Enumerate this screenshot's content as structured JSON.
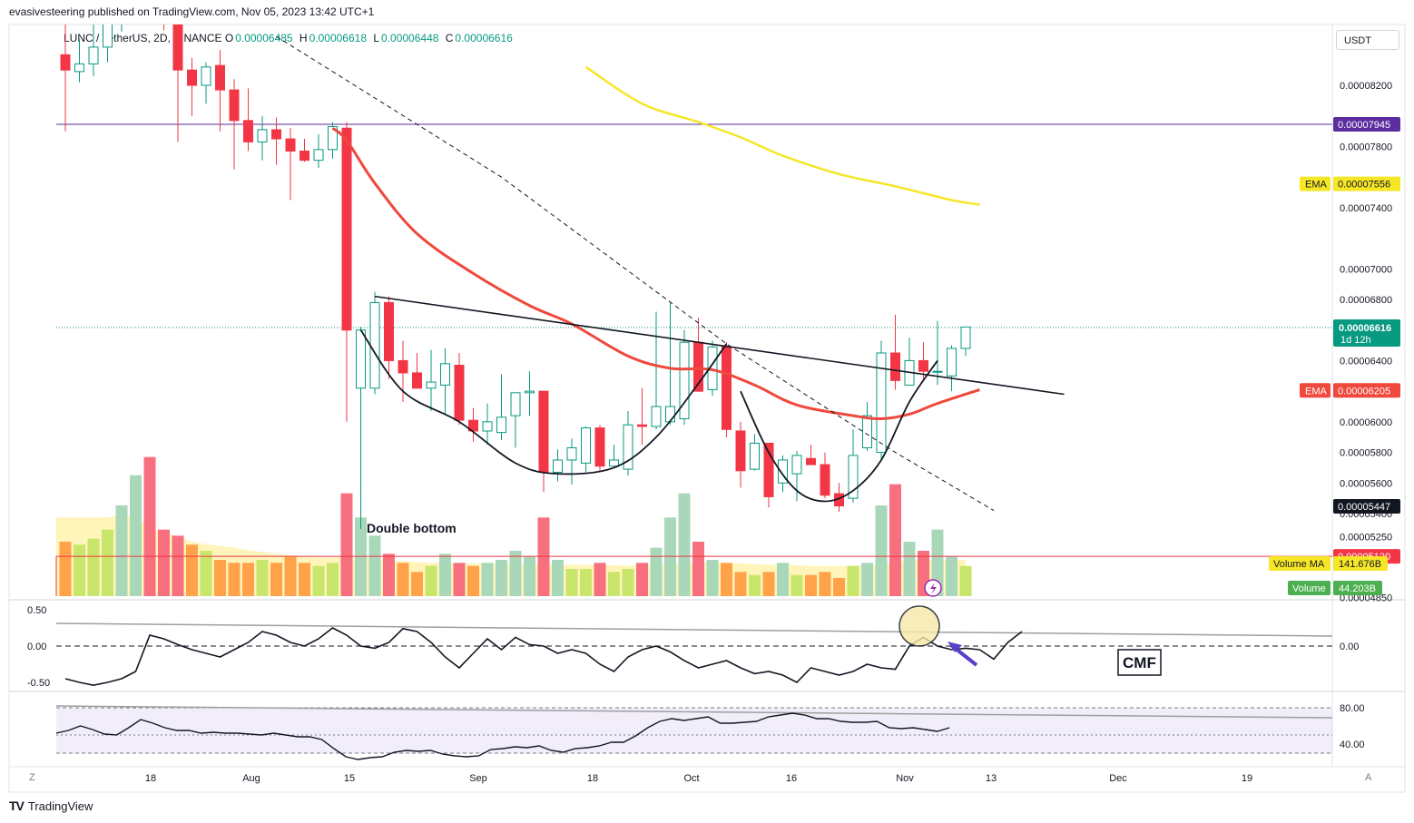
{
  "header": {
    "published": "evasivesteering published on TradingView.com, Nov 05, 2023 13:42 UTC+1",
    "symbol": "LUNC / TetherUS, 2D, BINANCE",
    "ohlc": [
      {
        "k": "O",
        "v": "0.00006485"
      },
      {
        "k": "H",
        "v": "0.00006618"
      },
      {
        "k": "L",
        "v": "0.00006448"
      },
      {
        "k": "C",
        "v": "0.00006616"
      }
    ]
  },
  "footer": {
    "brand": "TradingView",
    "logo": "tradingview-logo-icon"
  },
  "corner": {
    "left": "Z",
    "right": "A"
  },
  "price_axis": {
    "currency": "USDT"
  },
  "colors": {
    "up": "#089981",
    "down": "#f23645",
    "ema_fast": "#f0483c",
    "ema_slow": "#f5e626",
    "hline": "#5b2d9e",
    "support": "#f23645",
    "vol_ma": "#fff1a8"
  },
  "chart_data": [
    {
      "type": "candlestick",
      "title": "LUNC / TetherUS, 2D, BINANCE",
      "ylim": [
        4.86e-05,
        8.58e-05
      ],
      "x_ticks": [
        "18",
        "Aug",
        "15",
        "Sep",
        "18",
        "Oct",
        "16",
        "Nov",
        "13",
        "Dec",
        "19"
      ],
      "y_ticks": [
        "0.00008200",
        "0.00007800",
        "0.00007400",
        "0.00007000",
        "0.00006800",
        "0.00006400",
        "0.00006000",
        "0.00005800",
        "0.00005600",
        "0.00005400",
        "0.00005250",
        "0.00004850"
      ],
      "candles": [
        {
          "o": 8.4e-05,
          "h": 8.7e-05,
          "l": 7.9e-05,
          "c": 8.3e-05
        },
        {
          "o": 8.29e-05,
          "h": 8.5e-05,
          "l": 8.22e-05,
          "c": 8.34e-05
        },
        {
          "o": 8.34e-05,
          "h": 8.68e-05,
          "l": 8.26e-05,
          "c": 8.45e-05
        },
        {
          "o": 8.45e-05,
          "h": 8.78e-05,
          "l": 8.35e-05,
          "c": 8.72e-05
        },
        {
          "o": 8.72e-05,
          "h": 8.95e-05,
          "l": 8.55e-05,
          "c": 8.8e-05
        },
        {
          "o": 8.8e-05,
          "h": 9e-05,
          "l": 8.62e-05,
          "c": 8.85e-05
        },
        {
          "o": 8.85e-05,
          "h": 9e-05,
          "l": 8.68e-05,
          "c": 8.72e-05
        },
        {
          "o": 8.72e-05,
          "h": 8.92e-05,
          "l": 8.56e-05,
          "c": 8.68e-05
        },
        {
          "o": 8.68e-05,
          "h": 8.75e-05,
          "l": 7.83e-05,
          "c": 8.3e-05
        },
        {
          "o": 8.3e-05,
          "h": 8.38e-05,
          "l": 8e-05,
          "c": 8.2e-05
        },
        {
          "o": 8.2e-05,
          "h": 8.35e-05,
          "l": 8.08e-05,
          "c": 8.32e-05
        },
        {
          "o": 8.33e-05,
          "h": 8.43e-05,
          "l": 7.9e-05,
          "c": 8.17e-05
        },
        {
          "o": 8.17e-05,
          "h": 8.24e-05,
          "l": 7.65e-05,
          "c": 7.97e-05
        },
        {
          "o": 7.97e-05,
          "h": 8.18e-05,
          "l": 7.77e-05,
          "c": 7.83e-05
        },
        {
          "o": 7.83e-05,
          "h": 8e-05,
          "l": 7.71e-05,
          "c": 7.91e-05
        },
        {
          "o": 7.91e-05,
          "h": 7.99e-05,
          "l": 7.68e-05,
          "c": 7.85e-05
        },
        {
          "o": 7.85e-05,
          "h": 7.92e-05,
          "l": 7.45e-05,
          "c": 7.77e-05
        },
        {
          "o": 7.77e-05,
          "h": 7.85e-05,
          "l": 7.7e-05,
          "c": 7.71e-05
        },
        {
          "o": 7.71e-05,
          "h": 7.88e-05,
          "l": 7.66e-05,
          "c": 7.78e-05
        },
        {
          "o": 7.78e-05,
          "h": 7.96e-05,
          "l": 7.72e-05,
          "c": 7.93e-05
        },
        {
          "o": 7.92e-05,
          "h": 7.96e-05,
          "l": 6e-05,
          "c": 6.6e-05
        },
        {
          "o": 6.22e-05,
          "h": 6.62e-05,
          "l": 5.3e-05,
          "c": 6.6e-05
        },
        {
          "o": 6.22e-05,
          "h": 6.85e-05,
          "l": 6.18e-05,
          "c": 6.78e-05
        },
        {
          "o": 6.78e-05,
          "h": 6.82e-05,
          "l": 6.28e-05,
          "c": 6.4e-05
        },
        {
          "o": 6.4e-05,
          "h": 6.53e-05,
          "l": 6.13e-05,
          "c": 6.32e-05
        },
        {
          "o": 6.32e-05,
          "h": 6.45e-05,
          "l": 6.25e-05,
          "c": 6.22e-05
        },
        {
          "o": 6.22e-05,
          "h": 6.47e-05,
          "l": 6.07e-05,
          "c": 6.26e-05
        },
        {
          "o": 6.24e-05,
          "h": 6.48e-05,
          "l": 6.05e-05,
          "c": 6.38e-05
        },
        {
          "o": 6.37e-05,
          "h": 6.45e-05,
          "l": 5.98e-05,
          "c": 6.01e-05
        },
        {
          "o": 6.01e-05,
          "h": 6.09e-05,
          "l": 5.87e-05,
          "c": 5.94e-05
        },
        {
          "o": 5.94e-05,
          "h": 6.12e-05,
          "l": 5.85e-05,
          "c": 6e-05
        },
        {
          "o": 5.93e-05,
          "h": 6.31e-05,
          "l": 5.88e-05,
          "c": 6.03e-05
        },
        {
          "o": 6.04e-05,
          "h": 6.17e-05,
          "l": 5.83e-05,
          "c": 6.19e-05
        },
        {
          "o": 6.19e-05,
          "h": 6.33e-05,
          "l": 6.04e-05,
          "c": 6.2e-05
        },
        {
          "o": 6.2e-05,
          "h": 6.2e-05,
          "l": 5.54e-05,
          "c": 5.67e-05
        },
        {
          "o": 5.67e-05,
          "h": 5.82e-05,
          "l": 5.61e-05,
          "c": 5.75e-05
        },
        {
          "o": 5.75e-05,
          "h": 5.89e-05,
          "l": 5.59e-05,
          "c": 5.83e-05
        },
        {
          "o": 5.73e-05,
          "h": 5.97e-05,
          "l": 5.67e-05,
          "c": 5.96e-05
        },
        {
          "o": 5.96e-05,
          "h": 5.98e-05,
          "l": 5.68e-05,
          "c": 5.71e-05
        },
        {
          "o": 5.71e-05,
          "h": 5.85e-05,
          "l": 5.7e-05,
          "c": 5.75e-05
        },
        {
          "o": 5.69e-05,
          "h": 6.07e-05,
          "l": 5.65e-05,
          "c": 5.98e-05
        },
        {
          "o": 5.98e-05,
          "h": 6.22e-05,
          "l": 5.85e-05,
          "c": 5.97e-05
        },
        {
          "o": 5.97e-05,
          "h": 6.72e-05,
          "l": 5.95e-05,
          "c": 6.1e-05
        },
        {
          "o": 6e-05,
          "h": 6.78e-05,
          "l": 5.98e-05,
          "c": 6.1e-05
        },
        {
          "o": 6.02e-05,
          "h": 6.6e-05,
          "l": 5.98e-05,
          "c": 6.52e-05
        },
        {
          "o": 6.52e-05,
          "h": 6.68e-05,
          "l": 6.2e-05,
          "c": 6.2e-05
        },
        {
          "o": 6.21e-05,
          "h": 6.53e-05,
          "l": 6.17e-05,
          "c": 6.49e-05
        },
        {
          "o": 6.49e-05,
          "h": 6.52e-05,
          "l": 5.9e-05,
          "c": 5.95e-05
        },
        {
          "o": 5.94e-05,
          "h": 6e-05,
          "l": 5.57e-05,
          "c": 5.68e-05
        },
        {
          "o": 5.69e-05,
          "h": 5.92e-05,
          "l": 5.68e-05,
          "c": 5.86e-05
        },
        {
          "o": 5.86e-05,
          "h": 5.86e-05,
          "l": 5.44e-05,
          "c": 5.51e-05
        },
        {
          "o": 5.6e-05,
          "h": 5.78e-05,
          "l": 5.54e-05,
          "c": 5.75e-05
        },
        {
          "o": 5.66e-05,
          "h": 5.81e-05,
          "l": 5.48e-05,
          "c": 5.78e-05
        },
        {
          "o": 5.76e-05,
          "h": 5.85e-05,
          "l": 5.72e-05,
          "c": 5.72e-05
        },
        {
          "o": 5.72e-05,
          "h": 5.8e-05,
          "l": 5.5e-05,
          "c": 5.52e-05
        },
        {
          "o": 5.53e-05,
          "h": 5.6e-05,
          "l": 5.41e-05,
          "c": 5.45e-05
        },
        {
          "o": 5.5e-05,
          "h": 5.95e-05,
          "l": 5.47e-05,
          "c": 5.78e-05
        },
        {
          "o": 5.83e-05,
          "h": 6.13e-05,
          "l": 5.81e-05,
          "c": 6.04e-05
        },
        {
          "o": 5.8e-05,
          "h": 6.53e-05,
          "l": 5.76e-05,
          "c": 6.45e-05
        },
        {
          "o": 6.45e-05,
          "h": 6.7e-05,
          "l": 6.21e-05,
          "c": 6.27e-05
        },
        {
          "o": 6.24e-05,
          "h": 6.55e-05,
          "l": 6.26e-05,
          "c": 6.4e-05
        },
        {
          "o": 6.4e-05,
          "h": 6.52e-05,
          "l": 6.27e-05,
          "c": 6.33e-05
        },
        {
          "o": 6.33e-05,
          "h": 6.66e-05,
          "l": 6.24e-05,
          "c": 6.33e-05
        },
        {
          "o": 6.3e-05,
          "h": 6.5e-05,
          "l": 6.2e-05,
          "c": 6.48e-05
        },
        {
          "o": 6.48e-05,
          "h": 6.62e-05,
          "l": 6.43e-05,
          "c": 6.62e-05
        }
      ],
      "ema_fast": [
        [
          19,
          7.92e-05
        ],
        [
          20,
          7.84e-05
        ],
        [
          22,
          7.56e-05
        ],
        [
          25,
          7.23e-05
        ],
        [
          29,
          6.97e-05
        ],
        [
          33,
          6.76e-05
        ],
        [
          36,
          6.64e-05
        ],
        [
          40,
          6.43e-05
        ],
        [
          43,
          6.35e-05
        ],
        [
          46,
          6.34e-05
        ],
        [
          49,
          6.24e-05
        ],
        [
          52,
          6.11e-05
        ],
        [
          56,
          6.04e-05
        ],
        [
          58,
          6.02e-05
        ],
        [
          60,
          6.05e-05
        ],
        [
          62,
          6.12e-05
        ],
        [
          65,
          6.21e-05
        ]
      ],
      "ema_slow": [
        [
          37,
          8.32e-05
        ],
        [
          41,
          8.08e-05
        ],
        [
          45,
          7.96e-05
        ],
        [
          48,
          7.86e-05
        ],
        [
          51,
          7.74e-05
        ],
        [
          55,
          7.62e-05
        ],
        [
          59,
          7.54e-05
        ],
        [
          63,
          7.45e-05
        ],
        [
          65,
          7.42e-05
        ]
      ],
      "trend_dashed": [
        [
          15,
          8.52e-05
        ],
        [
          31,
          7.6e-05
        ],
        [
          47,
          6.51e-05
        ],
        [
          59,
          5.8e-05
        ],
        [
          66,
          5.42e-05
        ]
      ],
      "neckline": [
        [
          22,
          6.82e-05
        ],
        [
          71,
          6.18e-05
        ]
      ],
      "cup_left": [
        [
          21,
          6.6e-05
        ],
        [
          24,
          6.2e-05
        ],
        [
          28,
          6e-05
        ],
        [
          32,
          5.73e-05
        ],
        [
          35,
          5.66e-05
        ],
        [
          39,
          5.7e-05
        ],
        [
          42,
          5.9e-05
        ],
        [
          45,
          6.25e-05
        ],
        [
          47,
          6.51e-05
        ]
      ],
      "cup_right": [
        [
          48,
          6.2e-05
        ],
        [
          50,
          5.8e-05
        ],
        [
          52,
          5.55e-05
        ],
        [
          54,
          5.48e-05
        ],
        [
          56,
          5.55e-05
        ],
        [
          58,
          5.75e-05
        ],
        [
          60,
          6.13e-05
        ],
        [
          62,
          6.4e-05
        ]
      ],
      "hlines": [
        {
          "price": 7.945e-05,
          "label": "0.00007945",
          "kind": "resistance"
        },
        {
          "price": 5.12e-05,
          "label": "0.00005120",
          "kind": "support"
        }
      ],
      "price_tags": [
        {
          "price": 7.556e-05,
          "label": "0.00007556",
          "tag": "EMA",
          "kind": "ema_slow"
        },
        {
          "price": 6.616e-05,
          "label": "0.00006616",
          "sub": "1d 12h",
          "kind": "last"
        },
        {
          "price": 6.205e-05,
          "label": "0.00006205",
          "tag": "EMA",
          "kind": "ema_fast"
        },
        {
          "price": 5.447e-05,
          "label": "0.00005447",
          "kind": "cross"
        }
      ],
      "annotations": [
        {
          "text": "Double bottom"
        }
      ]
    },
    {
      "type": "bar",
      "series": [
        {
          "name": "Volume",
          "values": [
            0.9,
            0.85,
            0.95,
            1.1,
            1.5,
            2.0,
            2.3,
            1.1,
            1.0,
            0.85,
            0.75,
            0.6,
            0.55,
            0.55,
            0.6,
            0.55,
            0.65,
            0.55,
            0.5,
            0.55,
            1.7,
            1.3,
            1.0,
            0.7,
            0.55,
            0.4,
            0.5,
            0.7,
            0.55,
            0.5,
            0.55,
            0.6,
            0.75,
            0.65,
            1.3,
            0.6,
            0.45,
            0.45,
            0.55,
            0.4,
            0.45,
            0.55,
            0.8,
            1.3,
            1.7,
            0.9,
            0.6,
            0.55,
            0.4,
            0.35,
            0.4,
            0.55,
            0.35,
            0.35,
            0.4,
            0.3,
            0.5,
            0.55,
            1.5,
            1.85,
            0.9,
            0.75,
            1.1,
            0.65,
            0.5
          ]
        }
      ],
      "vol_ma": [
        1.3,
        1.3,
        1.3,
        1.3,
        1.35,
        1.3,
        1.15,
        1.05,
        0.98,
        0.9,
        0.86,
        0.83,
        0.8,
        0.76,
        0.73,
        0.7,
        0.68,
        0.66,
        0.64,
        0.64,
        0.64,
        0.64,
        0.62,
        0.6,
        0.58,
        0.56,
        0.55,
        0.55,
        0.54,
        0.54,
        0.54,
        0.54,
        0.54,
        0.53,
        0.53,
        0.52,
        0.52,
        0.52,
        0.51,
        0.51,
        0.5,
        0.51,
        0.52,
        0.53,
        0.55,
        0.56,
        0.56,
        0.55,
        0.54,
        0.53,
        0.52,
        0.52,
        0.51,
        0.5,
        0.5,
        0.5,
        0.5,
        0.51,
        0.52,
        0.56,
        0.6,
        0.6,
        0.6,
        0.6,
        0.6
      ],
      "legend": [
        {
          "name": "Volume MA",
          "value": "141.676B"
        },
        {
          "name": "Volume",
          "value": "44.203B"
        }
      ]
    },
    {
      "type": "line",
      "title": "CMF",
      "ylim": [
        -0.6,
        0.6
      ],
      "y_ticks_left": [
        "0.50",
        "0.00",
        "-0.50"
      ],
      "y_tick_right": "0.00",
      "values": [
        -0.45,
        -0.5,
        -0.54,
        -0.5,
        -0.45,
        -0.35,
        0.15,
        0.1,
        0.02,
        -0.05,
        -0.1,
        -0.15,
        -0.05,
        0.05,
        0.2,
        0.15,
        0.05,
        0.0,
        0.1,
        0.25,
        0.15,
        0.0,
        -0.03,
        0.05,
        0.24,
        0.2,
        0.05,
        -0.15,
        -0.3,
        -0.1,
        0.1,
        -0.05,
        0.12,
        0.02,
        0.0,
        -0.1,
        -0.05,
        -0.1,
        -0.25,
        -0.35,
        -0.15,
        -0.05,
        0.0,
        -0.08,
        -0.2,
        -0.3,
        -0.25,
        -0.2,
        -0.3,
        -0.38,
        -0.35,
        -0.4,
        -0.5,
        -0.3,
        -0.35,
        -0.4,
        -0.35,
        -0.25,
        -0.3,
        -0.32,
        0.0,
        0.12,
        0.0,
        -0.05,
        -0.03,
        -0.05,
        -0.18,
        0.05,
        0.2
      ]
    },
    {
      "type": "line",
      "y_ticks_right": [
        "80.00",
        "40.00"
      ],
      "ylim": [
        20,
        90
      ],
      "values": [
        52,
        55,
        60,
        56,
        51,
        50,
        58,
        67,
        63,
        58,
        55,
        55,
        52,
        53,
        52,
        52,
        51,
        50,
        52,
        50,
        48,
        48,
        45,
        35,
        26,
        23,
        25,
        26,
        31,
        33,
        32,
        33,
        29,
        27,
        26,
        27,
        34,
        35,
        37,
        36,
        38,
        33,
        31,
        35,
        36,
        38,
        42,
        42,
        49,
        58,
        65,
        68,
        66,
        68,
        70,
        63,
        63,
        64,
        65,
        70,
        72,
        74,
        72,
        68,
        68,
        65,
        64,
        64,
        65,
        58,
        57,
        58,
        56,
        54,
        58
      ]
    }
  ]
}
